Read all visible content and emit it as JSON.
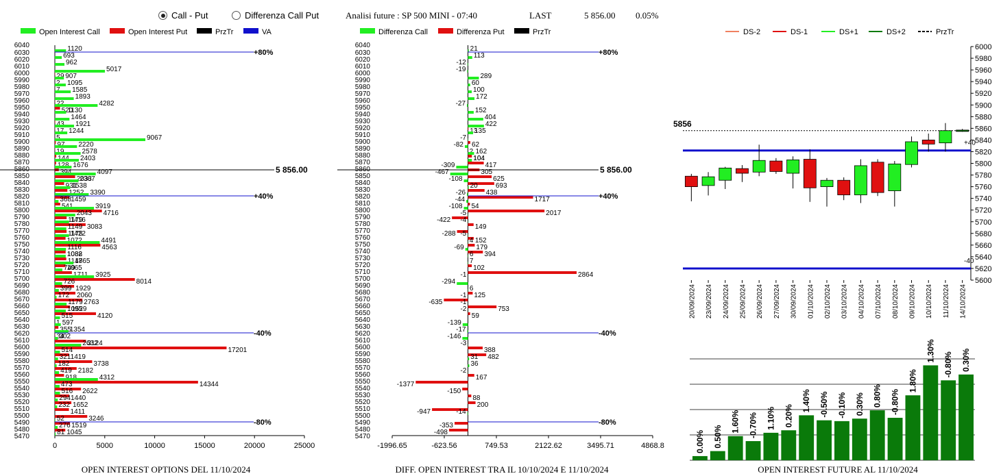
{
  "header": {
    "radio_call_put": "Call - Put",
    "radio_diff": "Differenza Call Put",
    "title": "Analisi future : SP 500 MINI - 07:40",
    "last_label": "LAST",
    "last_value": "5 856.00",
    "last_change": "0.05%"
  },
  "colors": {
    "green": "#22ee22",
    "red": "#e01010",
    "blue": "#1010cc",
    "darkgreen": "#0a7a0a",
    "black": "#000000"
  },
  "chart_data": [
    {
      "id": "oi_options",
      "type": "bar",
      "orientation": "horizontal",
      "title": "OPEN INTEREST OPTIONS DEL 11/10/2024",
      "legend": [
        "Open Interest Call",
        "Open Interest Put",
        "PrzTr",
        "VA"
      ],
      "strikes": [
        6040,
        6030,
        6020,
        6010,
        6000,
        5990,
        5980,
        5970,
        5960,
        5950,
        5940,
        5930,
        5920,
        5910,
        5900,
        5890,
        5880,
        5870,
        5860,
        5850,
        5840,
        5830,
        5820,
        5810,
        5800,
        5790,
        5780,
        5770,
        5760,
        5750,
        5740,
        5730,
        5720,
        5710,
        5700,
        5690,
        5680,
        5670,
        5660,
        5650,
        5640,
        5630,
        5620,
        5610,
        5600,
        5590,
        5580,
        5570,
        5560,
        5550,
        5540,
        5530,
        5520,
        5510,
        5500,
        5490,
        5480,
        5470
      ],
      "strike_labels": [
        6030,
        6020,
        6010,
        6000,
        5990,
        5980,
        5970,
        5960,
        5950,
        5940,
        5930,
        5920,
        5910,
        5900,
        5890,
        5880,
        5870,
        5860,
        5850,
        5840,
        5830,
        5820,
        5810,
        5800,
        5790,
        5780,
        5770,
        5760,
        5750,
        5740,
        5730,
        5720,
        5710,
        5700,
        5690,
        5680,
        5670,
        5660,
        5650,
        5640,
        5630,
        5620,
        5610,
        5600,
        5590,
        5580,
        5570,
        5560,
        5550,
        5540,
        5530,
        5520,
        5510,
        5500,
        5490,
        5480,
        5470
      ],
      "call": [
        0,
        1120,
        693,
        962,
        5017,
        907,
        1095,
        1585,
        1893,
        4282,
        1130,
        1464,
        1921,
        1244,
        9067,
        2220,
        2578,
        2403,
        1676,
        4097,
        2367,
        1538,
        3390,
        368,
        3919,
        2043,
        1416,
        1149,
        1422,
        4491,
        1116,
        1088,
        1865,
        749,
        3925,
        726,
        399,
        172,
        1179,
        1095,
        515,
        597,
        1354,
        302,
        2632,
        514,
        321,
        182,
        419,
        4312,
        473,
        516,
        294,
        232,
        0,
        52,
        276,
        81
      ],
      "put": [
        0,
        0,
        0,
        0,
        29,
        2,
        7,
        0,
        22,
        520,
        0,
        43,
        17,
        5,
        97,
        19,
        144,
        128,
        394,
        2033,
        931,
        1252,
        1459,
        541,
        4716,
        1179,
        3083,
        1175,
        1072,
        4563,
        1082,
        1147,
        1065,
        1711,
        8014,
        1929,
        2060,
        2763,
        1529,
        4120,
        1,
        355,
        34,
        3124,
        17201,
        1419,
        3738,
        2182,
        918,
        14344,
        2622,
        1440,
        1652,
        1411,
        3246,
        1519,
        1045,
        0
      ],
      "xlim": [
        0,
        25000
      ],
      "xticks": [
        0,
        5000,
        10000,
        15000,
        20000,
        25000
      ],
      "annotations": [
        {
          "strike": 6030,
          "label": "+80%"
        },
        {
          "strike": 5820,
          "label": "+40%"
        },
        {
          "strike": 5620,
          "label": "-40%"
        },
        {
          "strike": 5490,
          "label": "-80%"
        }
      ],
      "last_line": {
        "strike": 5858,
        "label": "5 856.00"
      }
    },
    {
      "id": "diff_oi",
      "type": "bar",
      "orientation": "horizontal",
      "title": "DIFF. OPEN INTEREST TRA IL 10/10/2024 E 11/10/2024",
      "legend": [
        "Differenza Call",
        "Differenza Put",
        "PrzTr"
      ],
      "strikes": [
        6040,
        6030,
        6020,
        6010,
        6000,
        5990,
        5980,
        5970,
        5960,
        5950,
        5940,
        5930,
        5920,
        5910,
        5900,
        5890,
        5880,
        5870,
        5860,
        5850,
        5840,
        5830,
        5820,
        5810,
        5800,
        5790,
        5780,
        5770,
        5760,
        5750,
        5740,
        5730,
        5720,
        5710,
        5700,
        5690,
        5680,
        5670,
        5660,
        5650,
        5640,
        5630,
        5620,
        5610,
        5600,
        5590,
        5580,
        5570,
        5560,
        5550,
        5540,
        5530,
        5520,
        5510,
        5500,
        5490,
        5480,
        5470
      ],
      "strike_labels": [
        6030,
        6020,
        6010,
        6000,
        5990,
        5980,
        5970,
        5960,
        5950,
        5940,
        5930,
        5920,
        5910,
        5900,
        5890,
        5880,
        5870,
        5860,
        5850,
        5840,
        5830,
        5820,
        5810,
        5800,
        5790,
        5780,
        5770,
        5760,
        5750,
        5740,
        5730,
        5720,
        5710,
        5700,
        5690,
        5680,
        5670,
        5660,
        5650,
        5640,
        5630,
        5620,
        5610,
        5600,
        5590,
        5580,
        5570,
        5560,
        5550,
        5540,
        5530,
        5520,
        5510,
        5500,
        5490,
        5480,
        5470
      ],
      "call": [
        0,
        21,
        113,
        -12,
        -19,
        289,
        60,
        100,
        172,
        -27,
        152,
        404,
        422,
        135,
        -7,
        -82,
        162,
        104,
        -309,
        -467,
        -108,
        20,
        -26,
        -44,
        -108,
        -5,
        -4,
        0,
        -5,
        4,
        -69,
        6,
        7,
        0,
        -1,
        -294,
        6,
        -1,
        -1,
        -2,
        0,
        -139,
        -17,
        -146,
        -3,
        0,
        31,
        36,
        -2,
        0,
        0,
        0,
        0,
        0,
        -14,
        0,
        0,
        0
      ],
      "put": [
        0,
        0,
        0,
        0,
        0,
        0,
        0,
        0,
        0,
        0,
        0,
        0,
        13,
        0,
        62,
        2,
        104,
        417,
        305,
        625,
        693,
        438,
        1717,
        54,
        2017,
        -422,
        149,
        -288,
        152,
        179,
        394,
        0,
        102,
        2864,
        0,
        0,
        125,
        -635,
        753,
        59,
        0,
        0,
        0,
        0,
        388,
        482,
        0,
        0,
        167,
        -1377,
        -150,
        88,
        200,
        -947,
        0,
        -353,
        -498,
        0
      ],
      "put_labels": [
        null,
        null,
        null,
        null,
        null,
        null,
        null,
        null,
        null,
        null,
        null,
        null,
        "13",
        null,
        "62",
        "2",
        "104",
        "417",
        "305",
        "625",
        "693",
        "438",
        "1717",
        "54",
        "2017",
        "-422",
        "149",
        "-288",
        "152",
        "179",
        "394",
        null,
        "102",
        "2864",
        null,
        null,
        "125",
        "-635",
        "753",
        "59",
        null,
        null,
        null,
        null,
        "388",
        "482",
        null,
        null,
        "167",
        "-1377",
        "-150",
        "88",
        "200",
        "-947",
        null,
        "-353",
        "-498",
        null
      ],
      "xlim": [
        -1996.65,
        4868.8
      ],
      "xticks": [
        -1996.65,
        -623.56,
        749.53,
        2122.62,
        3495.71,
        4868.8
      ],
      "xtick_labels": [
        "-1996.65",
        "-623.56",
        "749.53",
        "2122.62",
        "3495.71",
        "4868.8"
      ],
      "annotations": [
        {
          "strike": 6030,
          "label": "+80%"
        },
        {
          "strike": 5820,
          "label": "+40%"
        },
        {
          "strike": 5620,
          "label": "-40%"
        },
        {
          "strike": 5490,
          "label": "-80%"
        }
      ],
      "last_line": {
        "strike": 5858,
        "label": "5 856.00"
      }
    },
    {
      "id": "future_candles",
      "type": "candlestick",
      "legend": [
        "DS-2",
        "DS-1",
        "DS+1",
        "DS+2",
        "PrzTr"
      ],
      "dates": [
        "20/09/2024",
        "23/09/2024",
        "24/09/2024",
        "25/09/2024",
        "26/09/2024",
        "27/09/2024",
        "30/09/2024",
        "01/10/2024",
        "02/10/2024",
        "03/10/2024",
        "04/10/2024",
        "07/10/2024",
        "08/10/2024",
        "09/10/2024",
        "10/10/2024",
        "11/10/2024",
        "14/10/2024"
      ],
      "candles": [
        {
          "o": 5760,
          "c": 5778,
          "h": 5782,
          "l": 5735,
          "color": "red"
        },
        {
          "o": 5762,
          "c": 5777,
          "h": 5785,
          "l": 5745,
          "color": "green"
        },
        {
          "o": 5771,
          "c": 5792,
          "h": 5794,
          "l": 5756,
          "color": "green"
        },
        {
          "o": 5791,
          "c": 5783,
          "h": 5797,
          "l": 5768,
          "color": "red"
        },
        {
          "o": 5785,
          "c": 5805,
          "h": 5832,
          "l": 5778,
          "color": "green"
        },
        {
          "o": 5804,
          "c": 5786,
          "h": 5809,
          "l": 5782,
          "color": "red"
        },
        {
          "o": 5783,
          "c": 5806,
          "h": 5812,
          "l": 5757,
          "color": "green"
        },
        {
          "o": 5807,
          "c": 5758,
          "h": 5824,
          "l": 5734,
          "color": "red"
        },
        {
          "o": 5760,
          "c": 5771,
          "h": 5775,
          "l": 5726,
          "color": "green"
        },
        {
          "o": 5771,
          "c": 5746,
          "h": 5776,
          "l": 5737,
          "color": "red"
        },
        {
          "o": 5746,
          "c": 5796,
          "h": 5807,
          "l": 5732,
          "color": "green"
        },
        {
          "o": 5802,
          "c": 5750,
          "h": 5807,
          "l": 5744,
          "color": "red"
        },
        {
          "o": 5753,
          "c": 5799,
          "h": 5804,
          "l": 5726,
          "color": "green"
        },
        {
          "o": 5798,
          "c": 5837,
          "h": 5846,
          "l": 5793,
          "color": "green"
        },
        {
          "o": 5840,
          "c": 5833,
          "h": 5851,
          "l": 5820,
          "color": "red"
        },
        {
          "o": 5835,
          "c": 5856,
          "h": 5869,
          "l": 5820,
          "color": "green"
        },
        {
          "o": 5856,
          "c": 5857,
          "h": 5859,
          "l": 5854,
          "color": "darkgreen"
        }
      ],
      "ylim": [
        5600,
        6000
      ],
      "yticks": [
        5600,
        5620,
        5640,
        5660,
        5680,
        5700,
        5720,
        5740,
        5760,
        5780,
        5800,
        5820,
        5840,
        5860,
        5880,
        5900,
        5920,
        5940,
        5960,
        5980,
        6000
      ],
      "last_value": 5856,
      "last_label": "5856",
      "plus_level": {
        "value": 5822,
        "label": "+40"
      },
      "minus_level": {
        "value": 5620,
        "label": "-40"
      }
    },
    {
      "id": "oi_future",
      "type": "bar",
      "title": "OPEN INTEREST FUTURE AL 11/10/2024",
      "values": [
        0.5,
        1.1,
        2.9,
        2.3,
        3.3,
        3.6,
        5.4,
        4.8,
        4.7,
        5.0,
        6.0,
        5.1,
        7.8,
        11.4,
        9.6,
        10.3
      ],
      "labels": [
        "0.00%",
        "0.50%",
        "1.60%",
        "-0.70%",
        "1.10%",
        "0.20%",
        "1.40%",
        "-0.50%",
        "-0.10%",
        "0.30%",
        "0.80%",
        "-0.80%",
        "1.80%",
        "1.30%",
        "-0.80%",
        "0.30%"
      ],
      "grid_lines": 5,
      "ymax": 13
    }
  ]
}
